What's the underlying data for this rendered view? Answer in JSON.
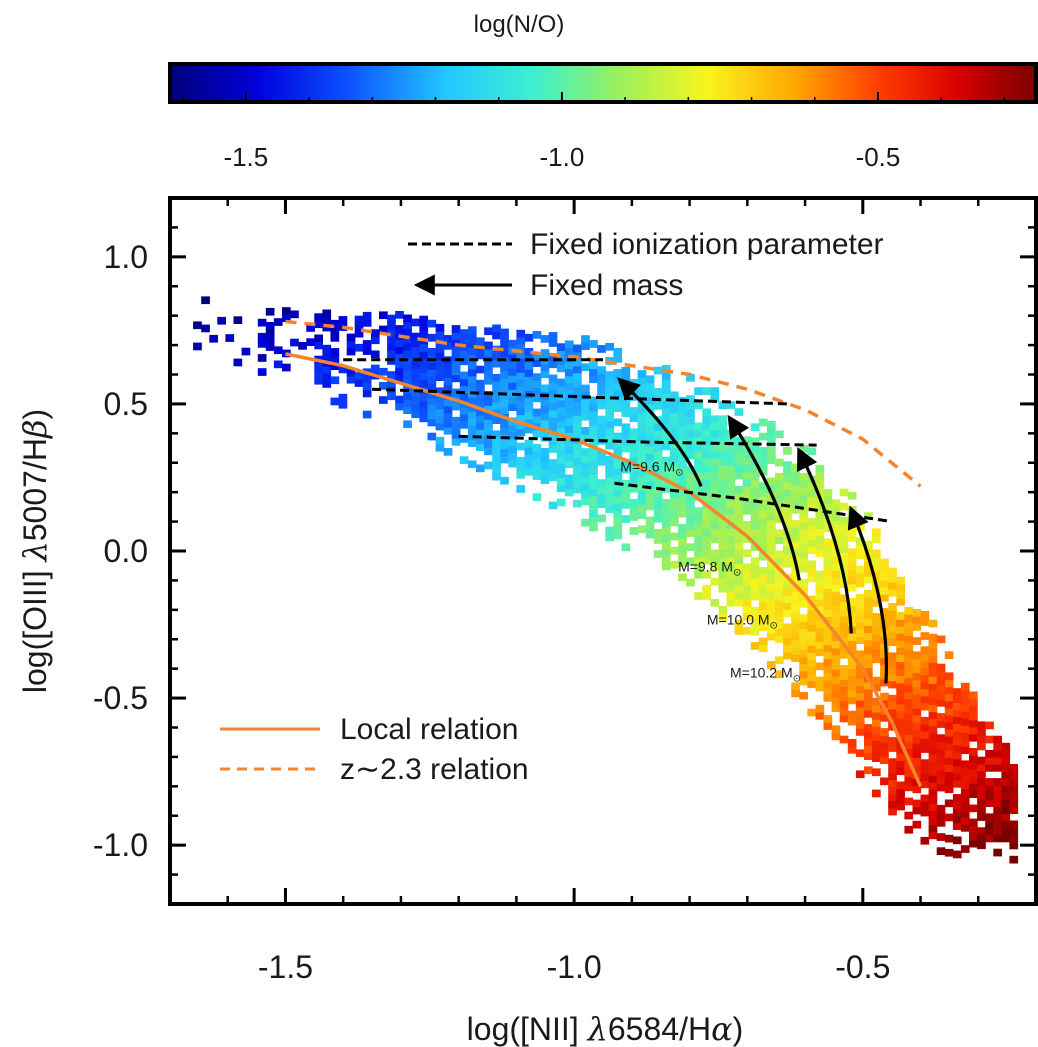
{
  "chart_data": {
    "type": "scatter",
    "colorbar": {
      "label": "log(N/O)",
      "range": [
        -1.62,
        -0.25
      ],
      "ticks": [
        -1.5,
        -1.0,
        -0.5
      ],
      "tick_labels": [
        "-1.5",
        "-1.0",
        "-0.5"
      ],
      "colormap": "rainbow (blue-cyan-green-yellow-red-darkred)"
    },
    "xlabel": {
      "pre": "log([NII] ",
      "lambda": "λ",
      "mid": "6584/H",
      "greek": "α",
      "post": ")"
    },
    "ylabel": {
      "pre": "log([OIII] ",
      "lambda": "λ",
      "mid": "5007/H",
      "greek": "β",
      "post": ")"
    },
    "xlim": [
      -1.7,
      -0.2
    ],
    "ylim": [
      -1.2,
      1.2
    ],
    "x_ticks": [
      -1.5,
      -1.0,
      -0.5
    ],
    "x_tick_labels": [
      "-1.5",
      "-1.0",
      "-0.5"
    ],
    "y_ticks": [
      1.0,
      0.5,
      0.0,
      -0.5,
      -1.0
    ],
    "y_tick_labels": [
      "1.0",
      "0.5",
      "0.0",
      "-0.5",
      "-1.0"
    ],
    "density_map": "binned pixels colored by log(N/O), forming a band from (-1.65, 0.8) to (-0.25, -1.0)",
    "legend_top": [
      {
        "style": "black dashed line",
        "label": "Fixed ionization parameter"
      },
      {
        "style": "black arrow",
        "label": "Fixed mass"
      }
    ],
    "legend_bottom": [
      {
        "style": "orange solid line",
        "label": "Local relation"
      },
      {
        "style": "orange dashed line",
        "label": "z∼2.3 relation"
      }
    ],
    "local_relation": {
      "x": [
        -1.5,
        -1.4,
        -1.3,
        -1.2,
        -1.1,
        -1.0,
        -0.9,
        -0.8,
        -0.7,
        -0.6,
        -0.5,
        -0.45,
        -0.4
      ],
      "y": [
        0.67,
        0.63,
        0.57,
        0.51,
        0.44,
        0.38,
        0.3,
        0.2,
        0.05,
        -0.15,
        -0.4,
        -0.58,
        -0.8
      ]
    },
    "z23_relation": {
      "x": [
        -1.5,
        -1.4,
        -1.3,
        -1.2,
        -1.1,
        -1.0,
        -0.9,
        -0.8,
        -0.7,
        -0.6,
        -0.5,
        -0.4
      ],
      "y": [
        0.78,
        0.76,
        0.73,
        0.7,
        0.68,
        0.66,
        0.63,
        0.6,
        0.55,
        0.48,
        0.38,
        0.22
      ]
    },
    "fixed_ionization_lines": [
      {
        "x": [
          -1.4,
          -0.95
        ],
        "y": [
          0.65,
          0.65
        ]
      },
      {
        "x": [
          -1.35,
          -0.93,
          -0.63
        ],
        "y": [
          0.55,
          0.52,
          0.5
        ]
      },
      {
        "x": [
          -1.2,
          -0.87,
          -0.58
        ],
        "y": [
          0.39,
          0.37,
          0.36
        ]
      },
      {
        "x": [
          -0.93,
          -0.72,
          -0.45
        ],
        "y": [
          0.23,
          0.18,
          0.1
        ]
      }
    ],
    "fixed_mass_arrows": [
      {
        "label": "M=9.6 M",
        "from": [
          -0.78,
          0.22
        ],
        "to": [
          -0.92,
          0.58
        ],
        "label_pos": [
          -0.92,
          0.27
        ]
      },
      {
        "label": "M=9.8 M",
        "from": [
          -0.61,
          -0.1
        ],
        "to": [
          -0.73,
          0.45
        ],
        "label_pos": [
          -0.82,
          -0.07
        ]
      },
      {
        "label": "M=10.0 M",
        "from": [
          -0.52,
          -0.28
        ],
        "to": [
          -0.61,
          0.34
        ],
        "label_pos": [
          -0.77,
          -0.25
        ]
      },
      {
        "label": "M=10.2 M",
        "from": [
          -0.46,
          -0.45
        ],
        "to": [
          -0.52,
          0.14
        ],
        "label_pos": [
          -0.73,
          -0.43
        ]
      }
    ],
    "colors": {
      "local": "#f5852d",
      "z23": "#f5852d",
      "fixed_ion": "#000000",
      "fixed_mass": "#000000"
    }
  }
}
